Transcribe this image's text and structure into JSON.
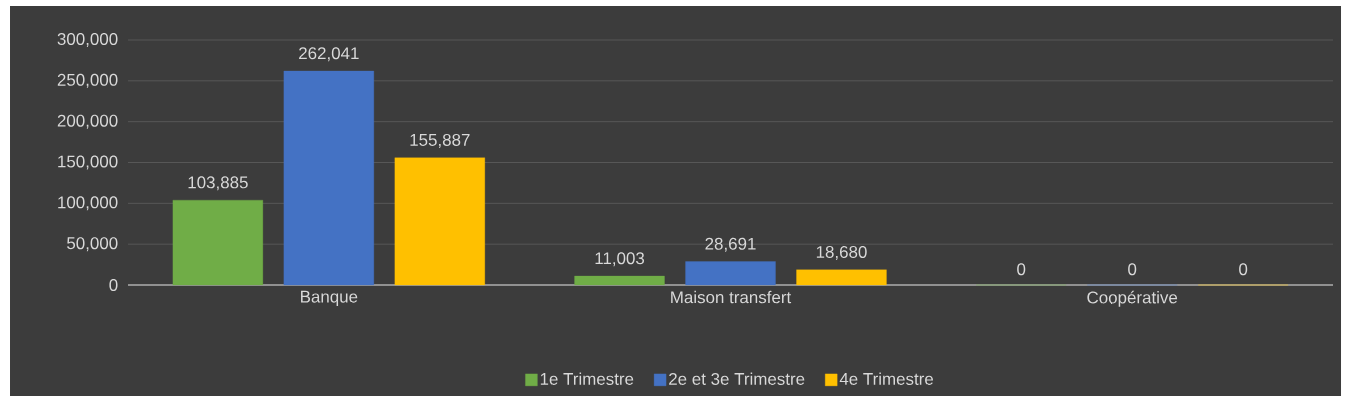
{
  "chart_data": {
    "type": "bar",
    "categories": [
      "Banque",
      "Maison transfert",
      "Coopérative"
    ],
    "series": [
      {
        "name": "1e Trimestre",
        "color": "#70ad47",
        "values": [
          103885,
          11003,
          0
        ],
        "value_labels": [
          "103,885",
          "11,003",
          "0"
        ]
      },
      {
        "name": "2e et 3e Trimestre",
        "color": "#4472c4",
        "values": [
          262041,
          28691,
          0
        ],
        "value_labels": [
          "262,041",
          "28,691",
          "0"
        ]
      },
      {
        "name": "4e Trimestre",
        "color": "#ffc000",
        "values": [
          155887,
          18680,
          0
        ],
        "value_labels": [
          "155,887",
          "18,680",
          "0"
        ]
      }
    ],
    "ylim": [
      0,
      300000
    ],
    "yticks": [
      {
        "value": 0,
        "label": "0"
      },
      {
        "value": 50000,
        "label": "50,000"
      },
      {
        "value": 100000,
        "label": "100,000"
      },
      {
        "value": 150000,
        "label": "150,000"
      },
      {
        "value": 200000,
        "label": "200,000"
      },
      {
        "value": 250000,
        "label": "250,000"
      },
      {
        "value": 300000,
        "label": "300,000"
      }
    ],
    "grid": "y",
    "legend": "bottom"
  }
}
